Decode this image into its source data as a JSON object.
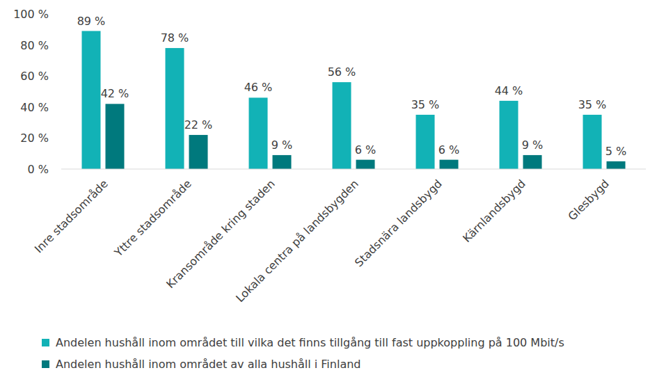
{
  "chart_data": {
    "type": "bar",
    "categories": [
      "Inre stadsområde",
      "Yttre stadsområde",
      "Kransområde kring staden",
      "Lokala centra på landsbygden",
      "Stadsnära landsbygd",
      "Kärnlandsbygd",
      "Glesbygd"
    ],
    "series": [
      {
        "name": "Andelen hushåll inom området till vilka det finns tillgång till fast uppkoppling på 100 Mbit/s",
        "color": "#12b2b6",
        "values": [
          89,
          78,
          46,
          56,
          35,
          44,
          35
        ],
        "value_labels": [
          "89 %",
          "78 %",
          "46 %",
          "56 %",
          "35 %",
          "44 %",
          "35 %"
        ]
      },
      {
        "name": "Andelen hushåll inom området av alla hushåll i Finland",
        "color": "#00797d",
        "values": [
          42,
          22,
          9,
          6,
          6,
          9,
          5
        ],
        "value_labels": [
          "42 %",
          "22 %",
          "9 %",
          "6 %",
          "6 %",
          "9 %",
          "5 %"
        ]
      }
    ],
    "ylim": [
      0,
      100
    ],
    "yticks": [
      {
        "value": 0,
        "label": "0 %"
      },
      {
        "value": 20,
        "label": "20 %"
      },
      {
        "value": 40,
        "label": "40 %"
      },
      {
        "value": 60,
        "label": "60 %"
      },
      {
        "value": 80,
        "label": "80 %"
      },
      {
        "value": 100,
        "label": "100 %"
      }
    ],
    "grid": false,
    "legend": "bottom",
    "data_labels": true
  }
}
